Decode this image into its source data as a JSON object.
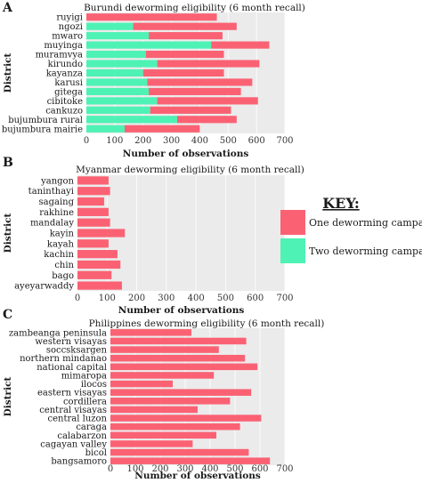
{
  "colors": {
    "one": "#fa6274",
    "two": "#4ef2b4",
    "grid": "#ffffff",
    "panel_bg": "#ebebeb"
  },
  "key": {
    "title": "KEY:",
    "one_label": "One deworming campaign",
    "two_label": "Two deworming campaign"
  },
  "chart_data": [
    {
      "type": "bar",
      "orientation": "horizontal",
      "stacked": true,
      "panel": "A",
      "title": "Burundi deworming eligibility (6 month recall)",
      "xlabel": "Number of observations",
      "ylabel": "District",
      "xlim": [
        0,
        700
      ],
      "xticks": [
        0,
        100,
        200,
        300,
        400,
        500,
        600,
        700
      ],
      "categories": [
        "ruyigi",
        "ngozi",
        "mwaro",
        "muyinga",
        "muramvya",
        "kirundo",
        "kayanza",
        "karusi",
        "gitega",
        "cibitoke",
        "cankuzo",
        "bujumbura rural",
        "bujumbura mairie"
      ],
      "series": [
        {
          "name": "Two deworming campaign",
          "values": [
            0,
            165,
            220,
            440,
            210,
            250,
            200,
            215,
            220,
            250,
            225,
            320,
            135
          ]
        },
        {
          "name": "One deworming campaign",
          "values": [
            460,
            365,
            260,
            205,
            275,
            360,
            285,
            370,
            325,
            355,
            285,
            210,
            265
          ]
        }
      ]
    },
    {
      "type": "bar",
      "orientation": "horizontal",
      "stacked": true,
      "panel": "B",
      "title": "Myanmar deworming eligibility (6 month recall)",
      "xlabel": "Number of observations",
      "ylabel": "District",
      "xlim": [
        0,
        700
      ],
      "xticks": [
        0,
        100,
        200,
        300,
        400,
        500,
        600,
        700
      ],
      "categories": [
        "yangon",
        "taninthayi",
        "sagaing",
        "rakhine",
        "mandalay",
        "kayin",
        "kayah",
        "kachin",
        "chin",
        "bago",
        "ayeyarwaddy"
      ],
      "series": [
        {
          "name": "Two deworming campaign",
          "values": [
            0,
            0,
            0,
            0,
            0,
            0,
            0,
            0,
            0,
            0,
            0
          ]
        },
        {
          "name": "One deworming campaign",
          "values": [
            105,
            110,
            90,
            105,
            110,
            160,
            105,
            135,
            145,
            115,
            150
          ]
        }
      ]
    },
    {
      "type": "bar",
      "orientation": "horizontal",
      "stacked": true,
      "panel": "C",
      "title": "Philippines deworming eligibility (6 month recall)",
      "xlabel": "Number of observations",
      "ylabel": "District",
      "xlim": [
        0,
        700
      ],
      "xticks": [
        0,
        100,
        200,
        300,
        400,
        500,
        600,
        700
      ],
      "categories": [
        "zambeanga peninsula",
        "western visayas",
        "soccsksargen",
        "northern mindanao",
        "national capital",
        "mimaropa",
        "ilocos",
        "eastern visayas",
        "cordillera",
        "central visayas",
        "central luzon",
        "caraga",
        "calabarzon",
        "cagayan valley",
        "bicol",
        "bangsamoro"
      ],
      "series": [
        {
          "name": "Two deworming campaign",
          "values": [
            0,
            0,
            0,
            0,
            0,
            0,
            0,
            0,
            0,
            0,
            0,
            0,
            0,
            0,
            0,
            0
          ]
        },
        {
          "name": "One deworming campaign",
          "values": [
            325,
            545,
            435,
            540,
            590,
            415,
            250,
            565,
            480,
            350,
            605,
            520,
            425,
            330,
            555,
            640
          ]
        }
      ]
    }
  ]
}
